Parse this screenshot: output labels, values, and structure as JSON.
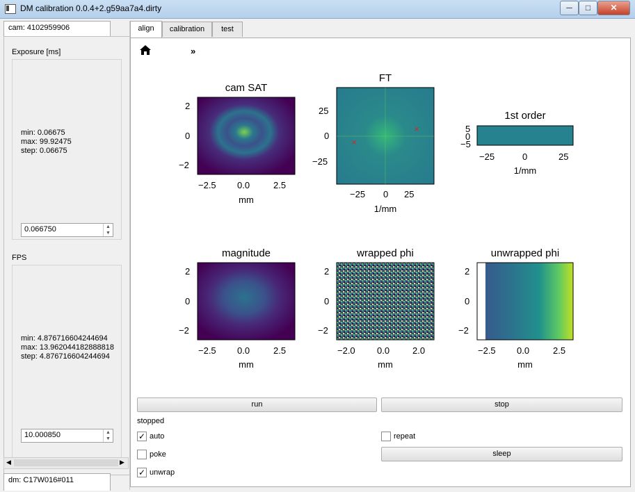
{
  "window": {
    "title": "DM calibration 0.0.4+2.g59aa7a4.dirty",
    "minimize": "─",
    "maximize": "□",
    "close": "✕"
  },
  "left": {
    "cam_label": "cam: 4102959906",
    "dm_label": "dm: C17W016#011",
    "exposure": {
      "label": "Exposure [ms]",
      "min": "min: 0.06675",
      "max": "max: 99.92475",
      "step": "step: 0.06675",
      "value": "0.066750"
    },
    "fps": {
      "label": "FPS",
      "min": "min: 4.876716604244694",
      "max": "max: 13.962044182888818",
      "step": "step: 4.876716604244694",
      "value": "10.000850"
    }
  },
  "tabs": [
    {
      "label": "align"
    },
    {
      "label": "calibration"
    },
    {
      "label": "test"
    }
  ],
  "toolbar": {
    "home_icon": "home-icon",
    "more": "»"
  },
  "plots": {
    "cam": {
      "title": "cam SAT",
      "xlabel": "mm",
      "xticks": [
        "−2.5",
        "0.0",
        "2.5"
      ],
      "yticks": [
        "2",
        "0",
        "−2"
      ]
    },
    "ft": {
      "title": "FT",
      "xlabel": "1/mm",
      "xticks": [
        "−25",
        "0",
        "25"
      ],
      "yticks": [
        "25",
        "0",
        "−25"
      ]
    },
    "first": {
      "title": "1st order",
      "xlabel": "1/mm",
      "xticks": [
        "−25",
        "0",
        "25"
      ],
      "yticks": [
        "5",
        "0",
        "−5"
      ]
    },
    "mag": {
      "title": "magnitude",
      "xlabel": "mm",
      "xticks": [
        "−2.5",
        "0.0",
        "2.5"
      ],
      "yticks": [
        "2",
        "0",
        "−2"
      ]
    },
    "wrapped": {
      "title": "wrapped phi",
      "xlabel": "mm",
      "xticks": [
        "−2.0",
        "0.0",
        "2.0"
      ],
      "yticks": [
        "2",
        "0",
        "−2"
      ]
    },
    "unwrapped": {
      "title": "unwrapped phi",
      "xlabel": "mm",
      "xticks": [
        "−2.5",
        "0.0",
        "2.5"
      ],
      "yticks": [
        "2",
        "0",
        "−2"
      ]
    }
  },
  "controls": {
    "run": "run",
    "stop": "stop",
    "status": "stopped",
    "auto": "auto",
    "auto_checked": true,
    "repeat": "repeat",
    "repeat_checked": false,
    "poke": "poke",
    "poke_checked": false,
    "sleep": "sleep",
    "unwrap": "unwrap",
    "unwrap_checked": true,
    "check_mark": "✓"
  },
  "colors": {
    "viridis_dark": "#440154",
    "viridis_mid": "#21918c",
    "viridis_light": "#fde725",
    "marker": "#d62728"
  }
}
